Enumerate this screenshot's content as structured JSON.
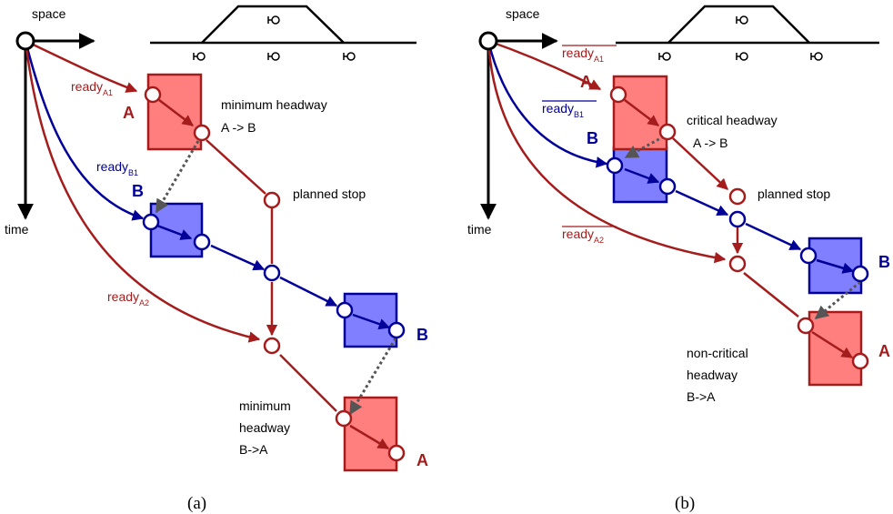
{
  "colors": {
    "train_a": "#a51c1c",
    "train_a_fill": "#ff7f7f",
    "train_b": "#000099",
    "train_b_fill": "#7f7fff",
    "headway": "#555555"
  },
  "axes": {
    "space": "space",
    "time": "time"
  },
  "panel_a": {
    "caption": "(a)",
    "ready_a1": {
      "main": "ready",
      "sub": "A1"
    },
    "ready_b1": {
      "main": "ready",
      "sub": "B1"
    },
    "ready_a2": {
      "main": "ready",
      "sub": "A2"
    },
    "train_a": "A",
    "train_b": "B",
    "headway_ab": [
      "minimum headway",
      "A -> B"
    ],
    "planned_stop": "planned stop",
    "headway_ba": [
      "minimum",
      "headway",
      "B->A"
    ]
  },
  "panel_b": {
    "caption": "(b)",
    "ready_a1": {
      "main": "ready",
      "sub": "A1"
    },
    "ready_b1": {
      "main": "ready",
      "sub": "B1"
    },
    "ready_a2": {
      "main": "ready",
      "sub": "A2"
    },
    "train_a": "A",
    "train_b": "B",
    "headway_ab": [
      "critical headway",
      "A -> B"
    ],
    "planned_stop": "planned stop",
    "headway_ba": [
      "non-critical",
      "headway",
      "B->A"
    ]
  }
}
